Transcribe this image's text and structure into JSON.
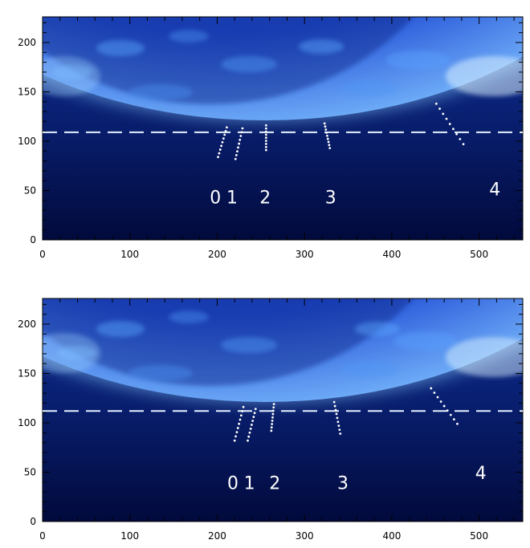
{
  "panels": [
    {
      "name": "panel-top",
      "x_ticks": [
        "0",
        "100",
        "200",
        "300",
        "400",
        "500"
      ],
      "y_ticks": [
        "0",
        "50",
        "100",
        "150",
        "200"
      ],
      "dashed_line_value": 109,
      "region_labels": [
        {
          "text": "0",
          "x": 198,
          "y": 37
        },
        {
          "text": "1",
          "x": 217,
          "y": 37
        },
        {
          "text": "2",
          "x": 255,
          "y": 37
        },
        {
          "text": "3",
          "x": 330,
          "y": 37
        },
        {
          "text": "4",
          "x": 518,
          "y": 45
        }
      ],
      "dotted_paths": [
        [
          [
            201,
            84
          ],
          [
            211,
            114
          ]
        ],
        [
          [
            221,
            82
          ],
          [
            229,
            113
          ]
        ],
        [
          [
            256,
            91
          ],
          [
            256,
            116
          ]
        ],
        [
          [
            329,
            93
          ],
          [
            323,
            118
          ]
        ],
        [
          [
            482,
            97
          ],
          [
            451,
            138
          ]
        ]
      ]
    },
    {
      "name": "panel-bottom",
      "x_ticks": [
        "0",
        "100",
        "200",
        "300",
        "400",
        "500"
      ],
      "y_ticks": [
        "0",
        "50",
        "100",
        "150",
        "200"
      ],
      "dashed_line_value": 112,
      "region_labels": [
        {
          "text": "0",
          "x": 218,
          "y": 33
        },
        {
          "text": "1",
          "x": 237,
          "y": 33
        },
        {
          "text": "2",
          "x": 266,
          "y": 33
        },
        {
          "text": "3",
          "x": 344,
          "y": 33
        },
        {
          "text": "4",
          "x": 502,
          "y": 43
        }
      ],
      "dotted_paths": [
        [
          [
            220,
            82
          ],
          [
            230,
            116
          ]
        ],
        [
          [
            235,
            82
          ],
          [
            244,
            114
          ]
        ],
        [
          [
            262,
            92
          ],
          [
            265,
            119
          ]
        ],
        [
          [
            341,
            89
          ],
          [
            334,
            121
          ]
        ],
        [
          [
            475,
            99
          ],
          [
            445,
            135
          ]
        ]
      ]
    }
  ],
  "colors": {
    "background": "#000a4a",
    "disk": "#1d3fb8",
    "limb": "#a7d8ff",
    "dash": "#e6f2ff",
    "dots": "#ffffff"
  }
}
